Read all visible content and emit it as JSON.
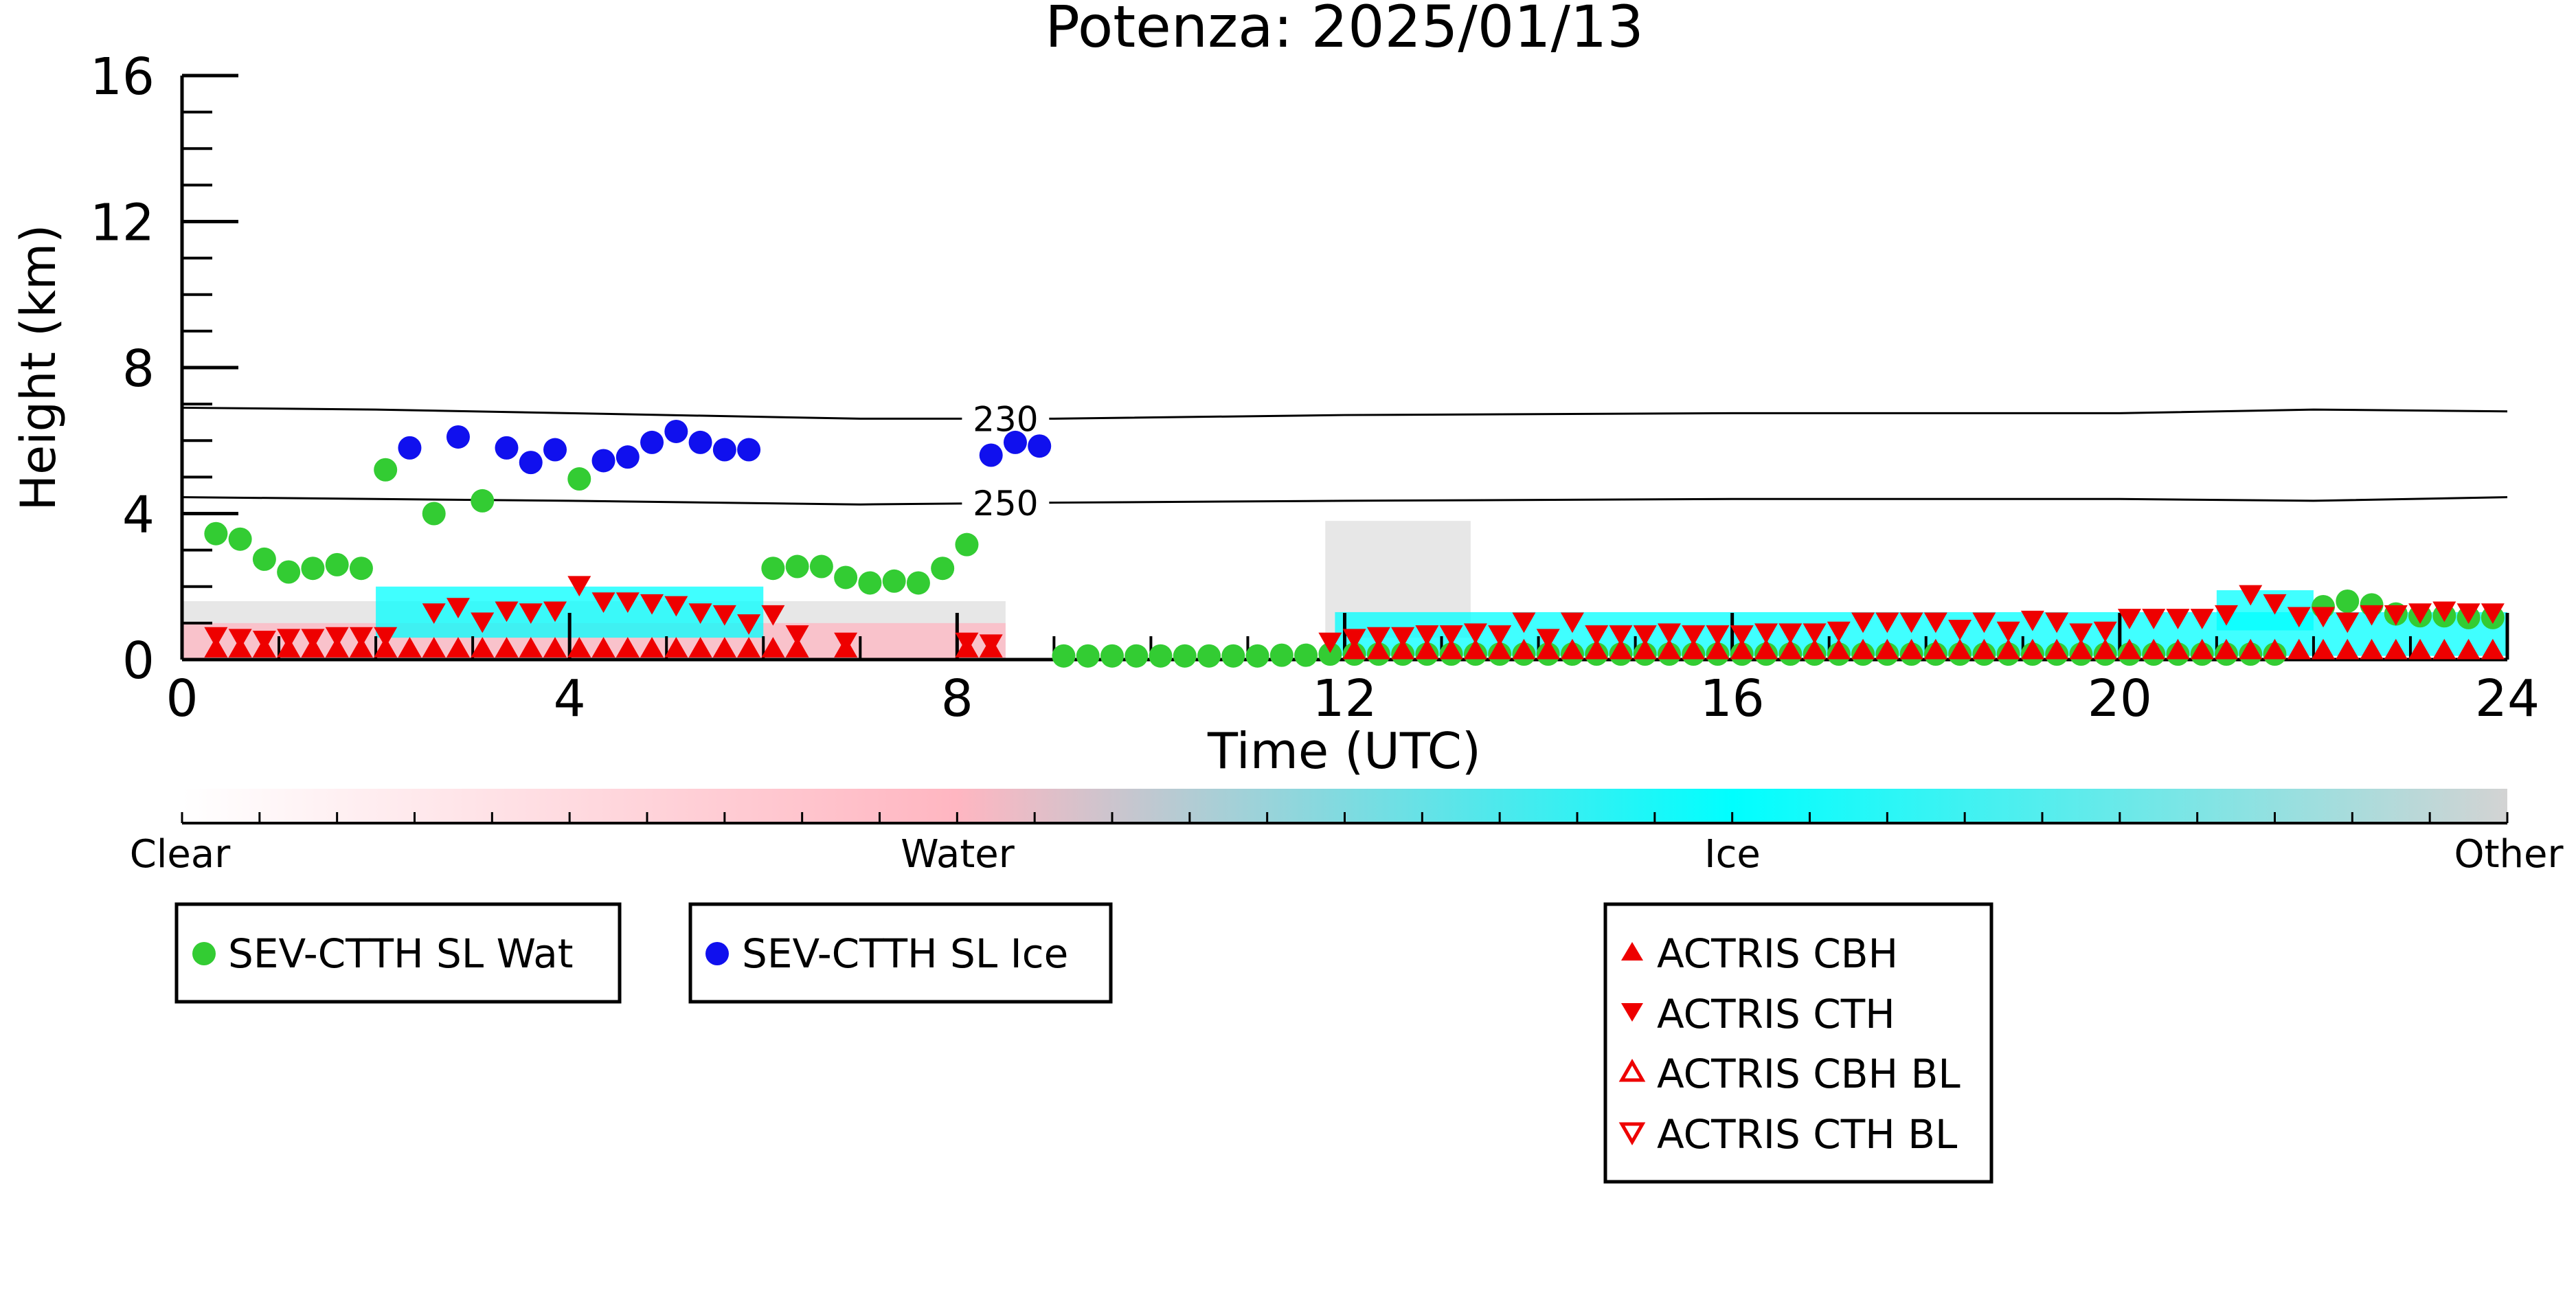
{
  "chart_data": {
    "type": "scatter",
    "title": "Potenza: 2025/01/13",
    "xlabel": "Time (UTC)",
    "ylabel": "Height (km)",
    "xlim": [
      0,
      24
    ],
    "ylim": [
      0,
      16
    ],
    "xticks": [
      "0",
      "4",
      "8",
      "12",
      "16",
      "20",
      "24"
    ],
    "yticks": [
      "0",
      "4",
      "8",
      "12",
      "16"
    ],
    "grid": false,
    "isotherms": [
      {
        "label": "230",
        "x": [
          0,
          2,
          4,
          7,
          9,
          12,
          16,
          20,
          22,
          24
        ],
        "y": [
          6.9,
          6.85,
          6.75,
          6.6,
          6.6,
          6.7,
          6.75,
          6.75,
          6.85,
          6.8
        ]
      },
      {
        "label": "250",
        "x": [
          0,
          2,
          4,
          7,
          9,
          12,
          16,
          20,
          22,
          24
        ],
        "y": [
          4.45,
          4.4,
          4.35,
          4.25,
          4.3,
          4.35,
          4.4,
          4.4,
          4.35,
          4.45
        ]
      }
    ],
    "series": [
      {
        "name": "SEV-CTTH SL Wat",
        "color": "#33cc33",
        "marker": "circle",
        "x": [
          0.35,
          0.6,
          0.85,
          1.1,
          1.35,
          1.6,
          1.85,
          2.1,
          2.6,
          3.1,
          4.1,
          6.1,
          6.35,
          6.6,
          6.85,
          7.1,
          7.35,
          7.6,
          7.85,
          8.1,
          9.1,
          9.35,
          9.6,
          9.85,
          10.1,
          10.35,
          10.6,
          10.85,
          11.1,
          11.35,
          11.6,
          11.85,
          12.1,
          12.35,
          12.6,
          12.85,
          13.1,
          13.35,
          13.6,
          13.85,
          14.1,
          14.35,
          14.6,
          14.85,
          15.1,
          15.35,
          15.6,
          15.85,
          16.1,
          16.35,
          16.6,
          16.85,
          17.1,
          17.35,
          17.6,
          17.85,
          18.1,
          18.35,
          18.6,
          18.85,
          19.1,
          19.35,
          19.6,
          19.85,
          20.1,
          20.35,
          20.6,
          20.85,
          21.1,
          21.35,
          21.6,
          22.1,
          22.35,
          22.6,
          22.85,
          23.1,
          23.35,
          23.6,
          23.85
        ],
        "y": [
          3.45,
          3.3,
          2.75,
          2.4,
          2.5,
          2.6,
          2.5,
          5.2,
          4.0,
          4.35,
          4.95,
          2.5,
          2.55,
          2.55,
          2.25,
          2.1,
          2.15,
          2.1,
          2.5,
          3.15,
          0.1,
          0.1,
          0.1,
          0.1,
          0.1,
          0.1,
          0.1,
          0.1,
          0.1,
          0.12,
          0.12,
          0.15,
          0.15,
          0.15,
          0.15,
          0.15,
          0.15,
          0.15,
          0.15,
          0.15,
          0.15,
          0.15,
          0.15,
          0.15,
          0.15,
          0.15,
          0.15,
          0.15,
          0.15,
          0.15,
          0.15,
          0.15,
          0.15,
          0.15,
          0.15,
          0.15,
          0.15,
          0.15,
          0.15,
          0.15,
          0.15,
          0.15,
          0.15,
          0.15,
          0.15,
          0.15,
          0.15,
          0.15,
          0.15,
          0.15,
          0.15,
          1.45,
          1.6,
          1.5,
          1.25,
          1.2,
          1.2,
          1.15,
          1.15
        ]
      },
      {
        "name": "SEV-CTTH SL Ice",
        "color": "#1010ee",
        "marker": "circle",
        "x": [
          2.35,
          2.85,
          3.35,
          3.6,
          3.85,
          4.35,
          4.6,
          4.85,
          5.1,
          5.35,
          5.6,
          5.85,
          8.35,
          8.6,
          8.85
        ],
        "y": [
          5.8,
          6.1,
          5.8,
          5.4,
          5.75,
          5.45,
          5.55,
          5.95,
          6.25,
          5.95,
          5.75,
          5.75,
          5.6,
          5.95,
          5.85
        ]
      },
      {
        "name": "ACTRIS CBH",
        "color": "#ee0000",
        "marker": "triangle-up",
        "x": [
          0.35,
          0.6,
          0.85,
          1.1,
          1.35,
          1.6,
          1.85,
          2.1,
          2.35,
          2.6,
          2.85,
          3.1,
          3.35,
          3.6,
          3.85,
          4.1,
          4.35,
          4.6,
          4.85,
          5.1,
          5.35,
          5.6,
          5.85,
          6.1,
          6.35,
          6.85,
          8.1,
          8.35,
          12.1,
          12.35,
          12.6,
          12.85,
          13.1,
          13.35,
          13.6,
          13.85,
          14.1,
          14.35,
          14.6,
          14.85,
          15.1,
          15.35,
          15.6,
          15.85,
          16.1,
          16.35,
          16.6,
          16.85,
          17.1,
          17.35,
          17.6,
          17.85,
          18.1,
          18.35,
          18.6,
          18.85,
          19.1,
          19.35,
          19.6,
          19.85,
          20.1,
          20.35,
          20.6,
          20.85,
          21.1,
          21.35,
          21.6,
          21.85,
          22.1,
          22.35,
          22.6,
          22.85,
          23.1,
          23.35,
          23.6,
          23.85
        ],
        "y": [
          0.3,
          0.3,
          0.3,
          0.3,
          0.3,
          0.3,
          0.3,
          0.3,
          0.3,
          0.3,
          0.3,
          0.3,
          0.3,
          0.3,
          0.3,
          0.3,
          0.3,
          0.3,
          0.3,
          0.3,
          0.3,
          0.3,
          0.3,
          0.3,
          0.3,
          0.3,
          0.3,
          0.3,
          0.25,
          0.25,
          0.25,
          0.25,
          0.25,
          0.25,
          0.25,
          0.25,
          0.25,
          0.25,
          0.25,
          0.25,
          0.25,
          0.25,
          0.25,
          0.25,
          0.25,
          0.25,
          0.25,
          0.25,
          0.25,
          0.25,
          0.25,
          0.25,
          0.25,
          0.25,
          0.25,
          0.25,
          0.25,
          0.25,
          0.25,
          0.25,
          0.25,
          0.25,
          0.25,
          0.25,
          0.25,
          0.25,
          0.25,
          0.25,
          0.25,
          0.25,
          0.25,
          0.25,
          0.25,
          0.25,
          0.25,
          0.25
        ]
      },
      {
        "name": "ACTRIS CTH",
        "color": "#ee0000",
        "marker": "triangle-down",
        "x": [
          0.35,
          0.6,
          0.85,
          1.1,
          1.35,
          1.6,
          1.85,
          2.1,
          2.6,
          2.85,
          3.1,
          3.35,
          3.6,
          3.85,
          4.1,
          4.35,
          4.6,
          4.85,
          5.1,
          5.35,
          5.6,
          5.85,
          6.1,
          6.35,
          6.85,
          8.1,
          8.35,
          11.85,
          12.1,
          12.35,
          12.6,
          12.85,
          13.1,
          13.35,
          13.6,
          13.85,
          14.1,
          14.35,
          14.6,
          14.85,
          15.1,
          15.35,
          15.6,
          15.85,
          16.1,
          16.35,
          16.6,
          16.85,
          17.1,
          17.35,
          17.6,
          17.85,
          18.1,
          18.35,
          18.6,
          18.85,
          19.1,
          19.35,
          19.6,
          19.85,
          20.1,
          20.35,
          20.6,
          20.85,
          21.1,
          21.35,
          21.6,
          21.85,
          22.1,
          22.35,
          22.6,
          22.85,
          23.1,
          23.35,
          23.6,
          23.85
        ],
        "y": [
          0.65,
          0.6,
          0.55,
          0.6,
          0.6,
          0.65,
          0.65,
          0.65,
          1.3,
          1.45,
          1.05,
          1.35,
          1.3,
          1.35,
          2.05,
          1.6,
          1.6,
          1.55,
          1.5,
          1.3,
          1.25,
          1.0,
          1.25,
          0.7,
          0.5,
          0.5,
          0.45,
          0.5,
          0.6,
          0.65,
          0.65,
          0.7,
          0.7,
          0.75,
          0.7,
          1.05,
          0.6,
          1.05,
          0.7,
          0.7,
          0.7,
          0.75,
          0.7,
          0.7,
          0.7,
          0.75,
          0.75,
          0.75,
          0.8,
          1.05,
          1.05,
          1.05,
          1.05,
          0.85,
          1.05,
          0.8,
          1.1,
          1.05,
          0.75,
          0.8,
          1.15,
          1.15,
          1.15,
          1.15,
          1.25,
          1.8,
          1.55,
          1.2,
          1.2,
          1.05,
          1.25,
          1.25,
          1.3,
          1.35,
          1.3,
          1.3
        ]
      },
      {
        "name": "ACTRIS CBH BL",
        "color": "#ee0000",
        "marker": "triangle-up-open",
        "x": [],
        "y": []
      },
      {
        "name": "ACTRIS CTH BL",
        "color": "#ee0000",
        "marker": "triangle-down-open",
        "x": [],
        "y": []
      }
    ],
    "background_cloud_classes": [
      {
        "x0": 0.0,
        "x1": 8.5,
        "y0": 0.0,
        "y1": 1.0,
        "class": "Water"
      },
      {
        "x0": 2.0,
        "x1": 6.0,
        "y0": 0.6,
        "y1": 2.0,
        "class": "Ice"
      },
      {
        "x0": 11.9,
        "x1": 24.0,
        "y0": 0.1,
        "y1": 1.3,
        "class": "Ice"
      },
      {
        "x0": 21.0,
        "x1": 22.0,
        "y0": 0.8,
        "y1": 1.9,
        "class": "Ice"
      },
      {
        "x0": 0.0,
        "x1": 8.5,
        "y0": 0.0,
        "y1": 1.6,
        "class": "Other"
      },
      {
        "x0": 11.8,
        "x1": 13.3,
        "y0": 0.6,
        "y1": 3.8,
        "class": "Other"
      }
    ],
    "colorbar": {
      "labels": [
        "Clear",
        "Water",
        "Ice",
        "Other"
      ],
      "colors": [
        "#ffffff",
        "#ffb6c1",
        "#00ffff",
        "#d3d3d3"
      ]
    },
    "legends": [
      {
        "entries": [
          {
            "label": "SEV-CTTH SL Wat",
            "marker": "circle",
            "color": "#33cc33"
          }
        ]
      },
      {
        "entries": [
          {
            "label": "SEV-CTTH SL Ice",
            "marker": "circle",
            "color": "#1010ee"
          }
        ]
      },
      {
        "entries": [
          {
            "label": "ACTRIS CBH",
            "marker": "triangle-up",
            "color": "#ee0000"
          },
          {
            "label": "ACTRIS CTH",
            "marker": "triangle-down",
            "color": "#ee0000"
          },
          {
            "label": "ACTRIS CBH BL",
            "marker": "triangle-up-open",
            "color": "#ee0000"
          },
          {
            "label": "ACTRIS CTH BL",
            "marker": "triangle-down-open",
            "color": "#ee0000"
          }
        ]
      }
    ]
  }
}
